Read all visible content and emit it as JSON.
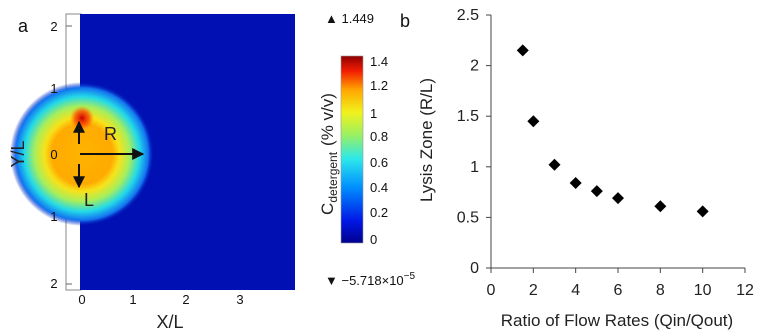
{
  "chart_data": [
    {
      "panel": "a",
      "type": "heatmap",
      "xlabel": "X/L",
      "ylabel": "Y/L",
      "x_ticks": [
        "0",
        "1",
        "2",
        "3"
      ],
      "y_ticks": [
        "2",
        "1",
        "0",
        "1",
        "2"
      ],
      "annotations": [
        "R",
        "L"
      ],
      "colorbar": {
        "label_main": "C",
        "label_sub": "detergent",
        "label_units": "(% v/v)",
        "ticks": [
          "1.4",
          "1.2",
          "1",
          "0.8",
          "0.6",
          "0.4",
          "0.2",
          "0"
        ],
        "max_marker": "▲ 1.449",
        "min_marker": "▼ −5.718×10",
        "min_marker_exp": "−5"
      }
    },
    {
      "panel": "b",
      "type": "scatter",
      "xlabel": "Ratio of Flow Rates (Qin/Qout)",
      "ylabel": "Lysis Zone (R/L)",
      "xlim": [
        0,
        12
      ],
      "ylim": [
        0,
        2.5
      ],
      "x_ticks": [
        "0",
        "2",
        "4",
        "6",
        "8",
        "10",
        "12"
      ],
      "y_ticks": [
        "0",
        "0.5",
        "1",
        "1.5",
        "2",
        "2.5"
      ],
      "points": [
        {
          "x": 1.5,
          "y": 2.15
        },
        {
          "x": 2,
          "y": 1.45
        },
        {
          "x": 3,
          "y": 1.02
        },
        {
          "x": 4,
          "y": 0.84
        },
        {
          "x": 5,
          "y": 0.76
        },
        {
          "x": 6,
          "y": 0.69
        },
        {
          "x": 8,
          "y": 0.61
        },
        {
          "x": 10,
          "y": 0.56
        }
      ],
      "marker": "diamond",
      "marker_color": "#000000"
    }
  ]
}
